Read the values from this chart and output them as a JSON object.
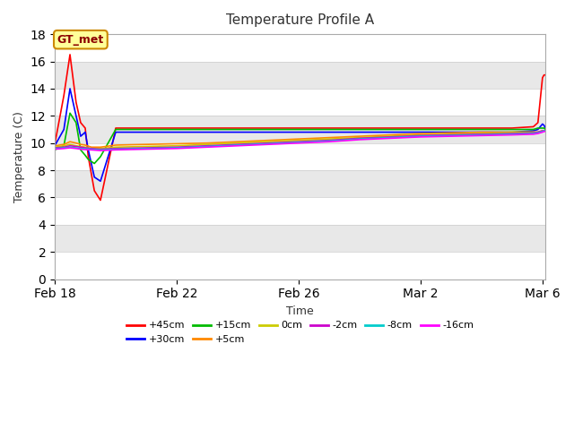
{
  "title": "Temperature Profile A",
  "xlabel": "Time",
  "ylabel": "Temperature (C)",
  "ylim": [
    0,
    18
  ],
  "yticks": [
    0,
    2,
    4,
    6,
    8,
    10,
    12,
    14,
    16,
    18
  ],
  "fig_bg_color": "#ffffff",
  "annotation_text": "GT_met",
  "annotation_box_color": "#ffff99",
  "annotation_border_color": "#cc8800",
  "series": [
    {
      "label": "+45cm",
      "color": "#ff0000",
      "data_x": [
        0.0,
        0.3,
        0.5,
        0.7,
        0.85,
        1.0,
        1.1,
        1.3,
        1.5,
        2.0,
        3.0,
        4.0,
        5.0,
        6.0,
        7.0,
        8.0,
        9.0,
        10.0,
        11.0,
        12.0,
        13.0,
        14.0,
        15.0,
        15.7,
        15.85,
        16.0,
        16.05,
        16.1
      ],
      "data_y": [
        9.9,
        13.5,
        16.5,
        13.0,
        11.5,
        11.1,
        9.0,
        6.5,
        5.8,
        11.1,
        11.1,
        11.1,
        11.1,
        11.1,
        11.1,
        11.1,
        11.1,
        11.1,
        11.1,
        11.1,
        11.1,
        11.1,
        11.1,
        11.2,
        11.5,
        14.8,
        15.0,
        15.0
      ]
    },
    {
      "label": "+30cm",
      "color": "#0000ff",
      "data_x": [
        0.0,
        0.3,
        0.5,
        0.7,
        0.85,
        1.0,
        1.1,
        1.3,
        1.5,
        2.0,
        3.0,
        4.0,
        5.0,
        6.0,
        7.0,
        8.0,
        9.0,
        10.0,
        11.0,
        12.0,
        13.0,
        14.0,
        15.0,
        15.7,
        15.85,
        16.0,
        16.05,
        16.1
      ],
      "data_y": [
        9.8,
        11.0,
        14.0,
        12.0,
        10.5,
        10.8,
        9.5,
        7.5,
        7.2,
        10.8,
        10.8,
        10.8,
        10.8,
        10.8,
        10.8,
        10.8,
        10.8,
        10.8,
        10.8,
        10.8,
        10.8,
        10.8,
        10.8,
        10.9,
        11.0,
        11.4,
        11.3,
        11.1
      ]
    },
    {
      "label": "+15cm",
      "color": "#00bb00",
      "data_x": [
        0.0,
        0.3,
        0.5,
        0.7,
        0.85,
        1.0,
        1.1,
        1.3,
        1.5,
        2.0,
        3.0,
        4.0,
        5.0,
        6.0,
        7.0,
        8.0,
        9.0,
        10.0,
        11.0,
        12.0,
        13.0,
        14.0,
        15.0,
        15.7,
        15.85,
        16.0,
        16.05,
        16.1
      ],
      "data_y": [
        9.5,
        9.8,
        12.2,
        11.5,
        9.5,
        9.1,
        8.8,
        8.5,
        9.0,
        11.0,
        11.0,
        11.0,
        11.0,
        11.0,
        11.0,
        11.0,
        11.0,
        11.0,
        11.0,
        11.0,
        11.0,
        11.0,
        11.0,
        11.0,
        11.1,
        11.1,
        11.1,
        11.0
      ]
    },
    {
      "label": "+5cm",
      "color": "#ff8800",
      "data_x": [
        0.0,
        0.3,
        0.5,
        0.7,
        0.85,
        1.0,
        1.2,
        1.5,
        2.0,
        3.0,
        4.0,
        5.0,
        6.0,
        7.0,
        8.0,
        9.0,
        10.0,
        11.0,
        12.0,
        13.0,
        14.0,
        15.0,
        15.7,
        15.85,
        16.0,
        16.05,
        16.1
      ],
      "data_y": [
        9.8,
        9.9,
        10.1,
        10.0,
        9.9,
        9.85,
        9.7,
        9.7,
        9.85,
        9.9,
        9.95,
        10.0,
        10.1,
        10.2,
        10.3,
        10.4,
        10.5,
        10.6,
        10.7,
        10.75,
        10.8,
        10.8,
        10.8,
        10.8,
        10.9,
        10.9,
        10.9
      ]
    },
    {
      "label": "0cm",
      "color": "#cccc00",
      "data_x": [
        0.0,
        0.3,
        0.5,
        0.7,
        0.85,
        1.0,
        1.2,
        1.5,
        2.0,
        3.0,
        4.0,
        5.0,
        6.0,
        7.0,
        8.0,
        9.0,
        10.0,
        11.0,
        12.0,
        13.0,
        14.0,
        15.0,
        15.7,
        15.85,
        16.0,
        16.05,
        16.1
      ],
      "data_y": [
        9.7,
        9.8,
        9.9,
        9.8,
        9.75,
        9.7,
        9.6,
        9.6,
        9.7,
        9.75,
        9.8,
        9.9,
        10.0,
        10.1,
        10.2,
        10.3,
        10.4,
        10.5,
        10.6,
        10.65,
        10.7,
        10.8,
        10.8,
        10.8,
        10.9,
        10.9,
        10.9
      ]
    },
    {
      "label": "-2cm",
      "color": "#cc00cc",
      "data_x": [
        0.0,
        0.3,
        0.5,
        0.7,
        0.85,
        1.0,
        1.2,
        1.5,
        2.0,
        3.0,
        4.0,
        5.0,
        6.0,
        7.0,
        8.0,
        9.0,
        10.0,
        11.0,
        12.0,
        13.0,
        14.0,
        15.0,
        15.7,
        15.85,
        16.0,
        16.05,
        16.1
      ],
      "data_y": [
        9.65,
        9.7,
        9.8,
        9.75,
        9.7,
        9.65,
        9.6,
        9.55,
        9.6,
        9.65,
        9.7,
        9.8,
        9.9,
        10.0,
        10.1,
        10.2,
        10.35,
        10.45,
        10.55,
        10.6,
        10.65,
        10.7,
        10.75,
        10.8,
        10.9,
        10.9,
        10.9
      ]
    },
    {
      "label": "-8cm",
      "color": "#00cccc",
      "data_x": [
        0.0,
        0.3,
        0.5,
        0.7,
        0.85,
        1.0,
        1.2,
        1.5,
        2.0,
        3.0,
        4.0,
        5.0,
        6.0,
        7.0,
        8.0,
        9.0,
        10.0,
        11.0,
        12.0,
        13.0,
        14.0,
        15.0,
        15.7,
        15.85,
        16.0,
        16.05,
        16.1
      ],
      "data_y": [
        9.6,
        9.65,
        9.7,
        9.65,
        9.6,
        9.58,
        9.55,
        9.5,
        9.55,
        9.6,
        9.65,
        9.75,
        9.85,
        9.95,
        10.05,
        10.15,
        10.3,
        10.4,
        10.5,
        10.55,
        10.6,
        10.65,
        10.7,
        10.75,
        10.85,
        10.9,
        10.9
      ]
    },
    {
      "label": "-16cm",
      "color": "#ff00ff",
      "data_x": [
        0.0,
        0.3,
        0.5,
        0.7,
        0.85,
        1.0,
        1.2,
        1.5,
        2.0,
        3.0,
        4.0,
        5.0,
        6.0,
        7.0,
        8.0,
        9.0,
        10.0,
        11.0,
        12.0,
        13.0,
        14.0,
        15.0,
        15.7,
        15.85,
        16.0,
        16.05,
        16.1
      ],
      "data_y": [
        9.55,
        9.6,
        9.65,
        9.6,
        9.55,
        9.52,
        9.5,
        9.45,
        9.5,
        9.55,
        9.6,
        9.7,
        9.8,
        9.9,
        10.0,
        10.1,
        10.25,
        10.35,
        10.45,
        10.5,
        10.55,
        10.6,
        10.65,
        10.7,
        10.8,
        10.85,
        10.85
      ]
    }
  ],
  "x_tick_labels": [
    "Feb 18",
    "Feb 22",
    "Feb 26",
    "Mar 2",
    "Mar 6"
  ],
  "x_tick_positions": [
    0.0,
    4.0,
    8.0,
    12.0,
    16.0
  ],
  "xlim": [
    0,
    16.1
  ],
  "band_colors": [
    "#ffffff",
    "#e8e8e8"
  ],
  "band_y_pairs": [
    [
      0,
      2
    ],
    [
      2,
      4
    ],
    [
      4,
      6
    ],
    [
      6,
      8
    ],
    [
      8,
      10
    ],
    [
      10,
      12
    ],
    [
      12,
      14
    ],
    [
      14,
      16
    ],
    [
      16,
      18
    ]
  ]
}
